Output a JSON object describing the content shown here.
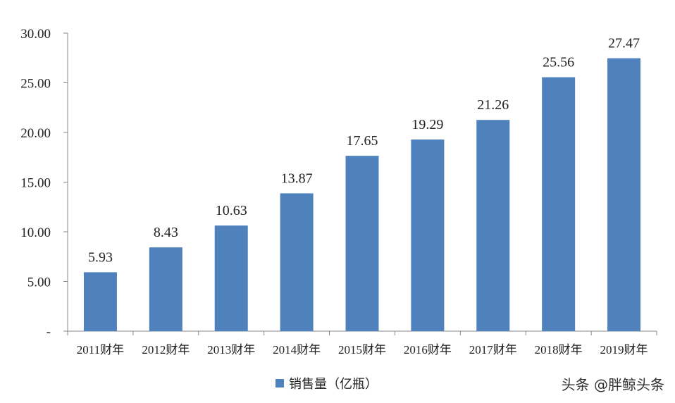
{
  "chart_data": {
    "type": "bar",
    "categories": [
      "2011财年",
      "2012财年",
      "2013财年",
      "2014财年",
      "2015财年",
      "2016财年",
      "2017财年",
      "2018财年",
      "2019财年"
    ],
    "series": [
      {
        "name": "销售量（亿瓶）",
        "values": [
          5.93,
          8.43,
          10.63,
          13.87,
          17.65,
          19.29,
          21.26,
          25.56,
          27.47
        ]
      }
    ],
    "data_labels": [
      "5.93",
      "8.43",
      "10.63",
      "13.87",
      "17.65",
      "19.29",
      "21.26",
      "25.56",
      "27.47"
    ],
    "y_tick_labels": [
      "-",
      "5.00",
      "10.00",
      "15.00",
      "20.00",
      "25.00",
      "30.00"
    ],
    "y_ticks": [
      0,
      5,
      10,
      15,
      20,
      25,
      30
    ],
    "ylim": [
      0,
      30
    ],
    "title": "",
    "xlabel": "",
    "ylabel": "",
    "grid": false,
    "legend_position": "bottom",
    "colors": {
      "bar": "#4F81BD",
      "axis": "#888888"
    }
  },
  "watermark": "头条 @胖鲸头条"
}
